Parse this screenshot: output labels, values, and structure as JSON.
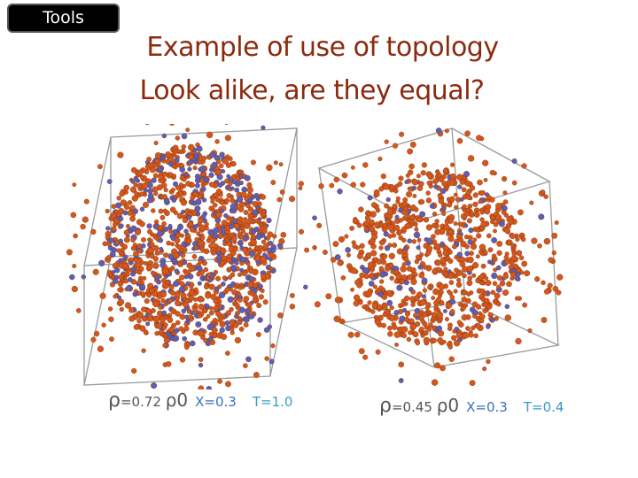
{
  "tag": {
    "label": "Tools"
  },
  "title": {
    "line1": "Example of use of topology",
    "line2": "Look  alike,  are  they  equal?"
  },
  "panels": [
    {
      "rho_symbol": "ρ",
      "density": "=0.72",
      "rho0": "ρ0",
      "x": "X=0.3",
      "t": "T=1.0"
    },
    {
      "rho_symbol": "ρ",
      "density": "=0.45",
      "rho0": "ρ0",
      "x": "X=0.3",
      "t": "T=0.4"
    }
  ],
  "colors": {
    "title": "#8b2a0f",
    "particle_main": "#d4581c",
    "particle_secondary": "#5a5fb8",
    "box_line": "#9a9a9a"
  }
}
